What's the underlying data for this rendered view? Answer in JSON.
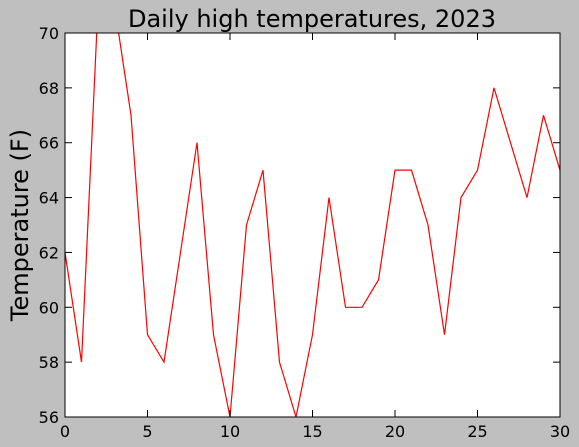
{
  "chart_data": {
    "type": "line",
    "title": "Daily high temperatures, 2023",
    "xlabel": "",
    "ylabel": "Temperature (F)",
    "xlim": [
      0,
      30
    ],
    "ylim": [
      56,
      70
    ],
    "xticks": [
      0,
      5,
      10,
      15,
      20,
      25,
      30
    ],
    "yticks": [
      56,
      58,
      60,
      62,
      64,
      66,
      68,
      70
    ],
    "grid": false,
    "series": [
      {
        "x": [
          0,
          1,
          2,
          3,
          4,
          5,
          6,
          7,
          8,
          9,
          10,
          11,
          12,
          13,
          14,
          15,
          16,
          17,
          18,
          19,
          20,
          21,
          22,
          23,
          24,
          25,
          26,
          27,
          28,
          29,
          30
        ],
        "values": [
          62,
          58,
          71,
          71,
          67,
          59,
          58,
          62,
          66,
          59,
          56,
          63,
          65,
          58,
          56,
          59,
          64,
          60,
          60,
          61,
          65,
          65,
          63,
          59,
          64,
          65,
          68,
          66,
          64,
          67,
          65
        ],
        "color": "#ff0000"
      }
    ]
  }
}
